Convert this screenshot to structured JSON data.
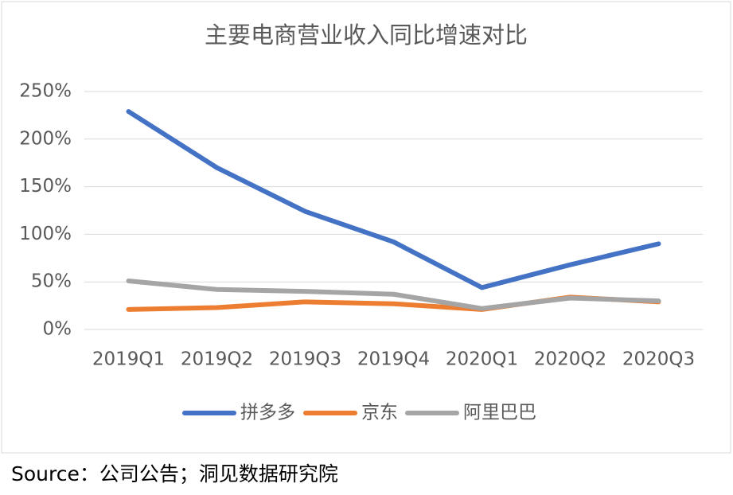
{
  "chart_data": {
    "type": "line",
    "title": "主要电商营业收入同比增速对比",
    "categories": [
      "2019Q1",
      "2019Q2",
      "2019Q3",
      "2019Q4",
      "2020Q1",
      "2020Q2",
      "2020Q3"
    ],
    "series": [
      {
        "name": "拼多多",
        "color": "#4472c4",
        "values": [
          229,
          170,
          124,
          92,
          44,
          68,
          90
        ]
      },
      {
        "name": "京东",
        "color": "#ed7d31",
        "values": [
          21,
          23,
          29,
          27,
          21,
          34,
          29
        ]
      },
      {
        "name": "阿里巴巴",
        "color": "#a5a5a5",
        "values": [
          51,
          42,
          40,
          37,
          22,
          33,
          30
        ]
      }
    ],
    "ylim": [
      0,
      250
    ],
    "yticks": [
      {
        "value": 0,
        "label": "0%"
      },
      {
        "value": 50,
        "label": "50%"
      },
      {
        "value": 100,
        "label": "100%"
      },
      {
        "value": 150,
        "label": "150%"
      },
      {
        "value": 200,
        "label": "200%"
      },
      {
        "value": 250,
        "label": "250%"
      }
    ],
    "grid": true,
    "legend": "bottom"
  },
  "source": "Source：公司公告；洞见数据研究院"
}
